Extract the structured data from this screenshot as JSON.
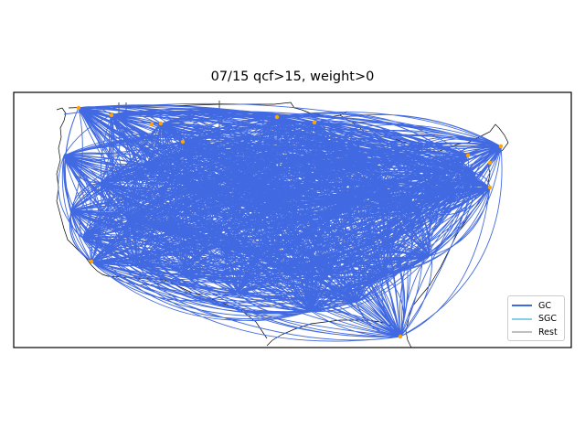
{
  "title": "07/15 qcf>15, weight>0",
  "colors": {
    "gc": "#4169e1",
    "sgc": "#87ceeb",
    "rest": "#c0c0c0",
    "airport": "#ffa500",
    "frame": "#000000",
    "border": "#000000"
  },
  "legend": {
    "items": [
      {
        "label": "GC",
        "color": "#4169e1"
      },
      {
        "label": "SGC",
        "color": "#87ceeb"
      },
      {
        "label": "Rest",
        "color": "#c0c0c0"
      }
    ],
    "placement": "lower-right"
  },
  "map": {
    "region": "Contiguous United States",
    "projection": "lambert-conformal",
    "layers": [
      "coastlines",
      "country-borders",
      "flight-routes",
      "airports"
    ],
    "route_type": "great-circle"
  }
}
